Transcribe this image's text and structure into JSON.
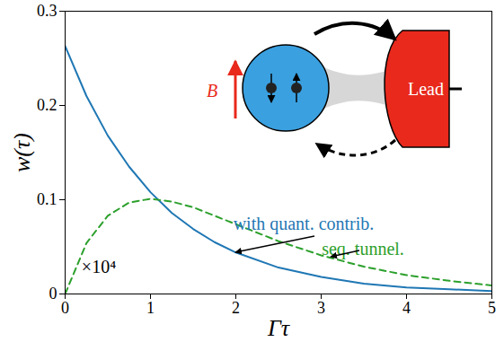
{
  "chart_data": {
    "type": "line",
    "x_label": "Γτ",
    "y_label": "w(τ)",
    "xlim": [
      0,
      5
    ],
    "xticks": [
      0,
      1,
      2,
      3,
      4,
      5
    ],
    "ylim": [
      0,
      0.3
    ],
    "yticks": [
      0,
      0.1,
      0.2,
      0.3
    ],
    "x": [
      0,
      0.25,
      0.5,
      0.75,
      1,
      1.25,
      1.5,
      1.75,
      2,
      2.5,
      3,
      3.5,
      4,
      4.5,
      5
    ],
    "series": [
      {
        "name": "with quant. contrib.",
        "color": "#1f77b4",
        "line_style": "solid",
        "values": [
          0.263,
          0.21,
          0.168,
          0.135,
          0.108,
          0.086,
          0.069,
          0.055,
          0.044,
          0.028,
          0.018,
          0.011,
          0.007,
          0.005,
          0.003
        ]
      },
      {
        "name": "seq. tunnel.",
        "color": "#2ca02c",
        "line_style": "dashed",
        "values": [
          0,
          0.054,
          0.083,
          0.097,
          0.101,
          0.098,
          0.092,
          0.083,
          0.074,
          0.056,
          0.041,
          0.029,
          0.02,
          0.014,
          0.009
        ]
      }
    ],
    "annotations": [
      "with quant. contrib.",
      "seq. tunnel.",
      "×10⁴",
      "B",
      "Lead"
    ],
    "grid": false,
    "legend": false
  }
}
